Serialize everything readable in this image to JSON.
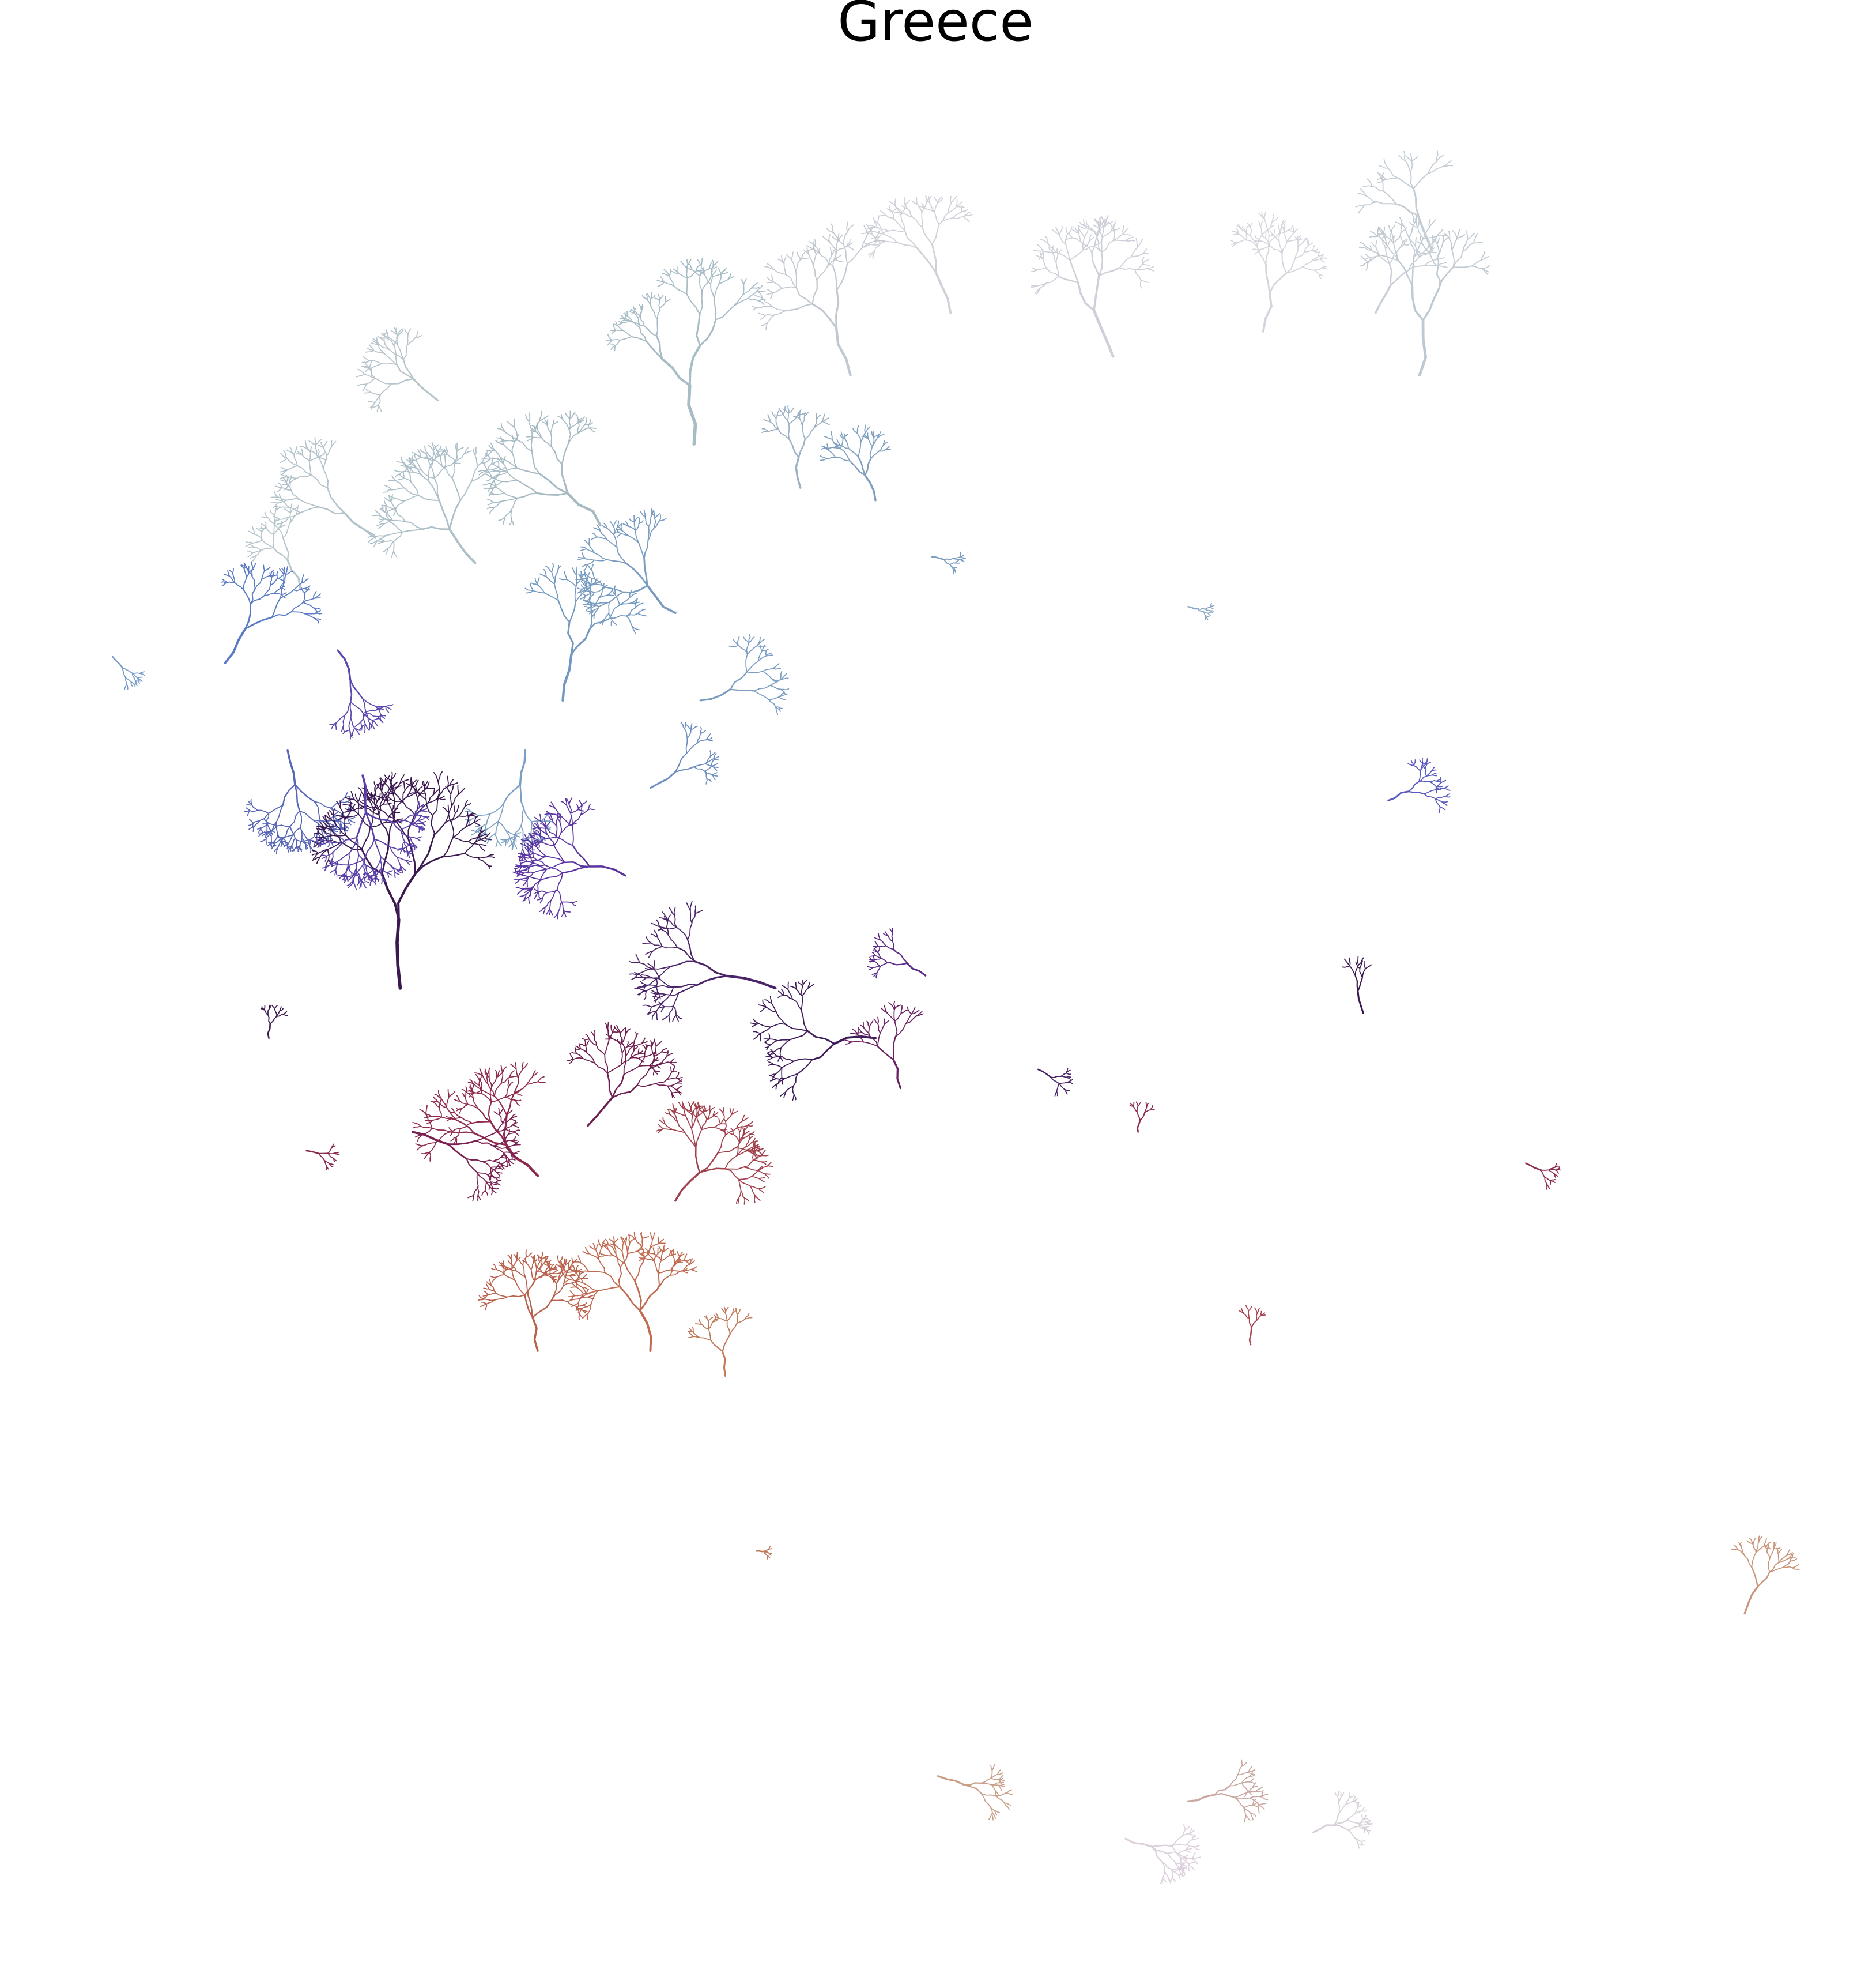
{
  "title": "Greece"
}
